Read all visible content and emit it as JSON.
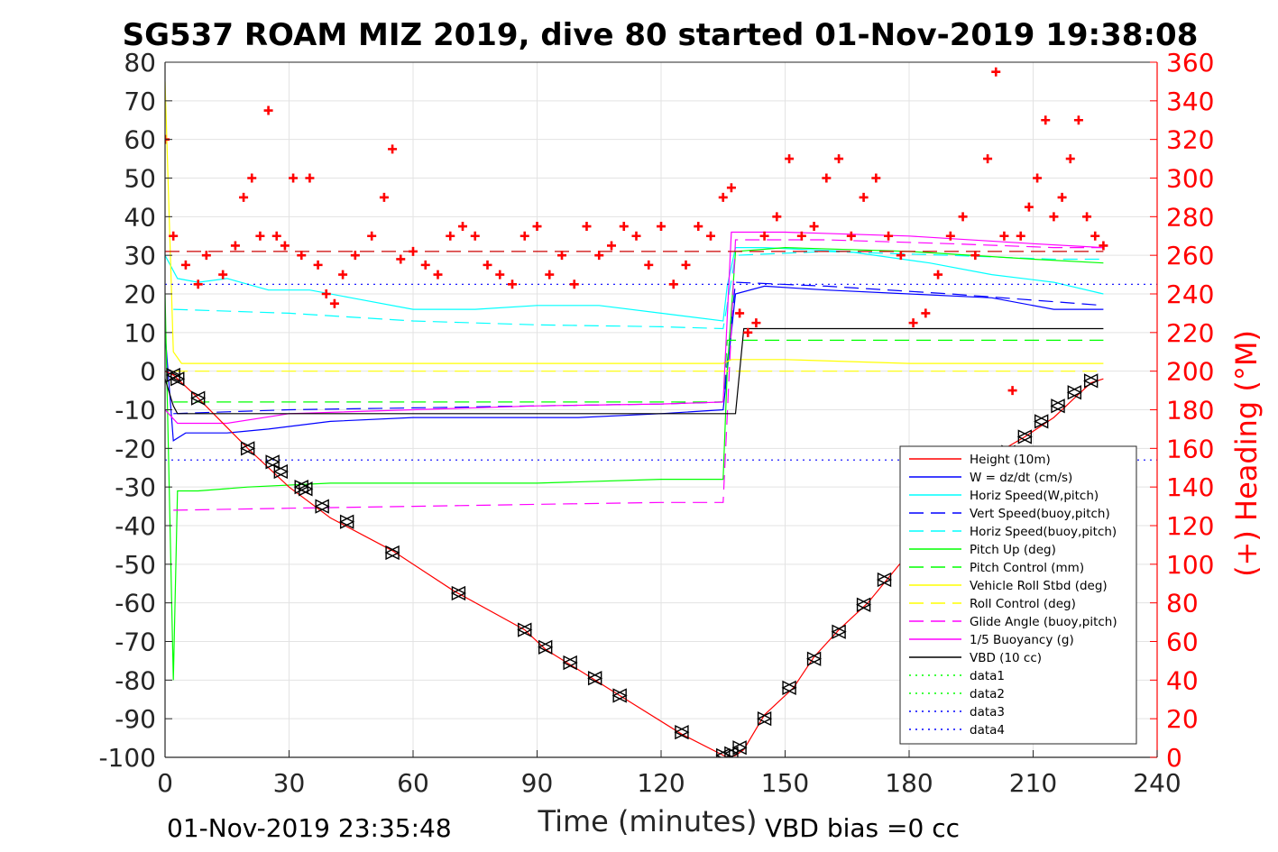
{
  "title": "SG537 ROAM MIZ 2019, dive 80 started 01-Nov-2019 19:38:08",
  "footer_left": "01-Nov-2019 23:35:48",
  "footer_right": "VBD bias =0 cc",
  "chart_data": {
    "type": "line",
    "xlabel": "Time (minutes)",
    "ylabel": "",
    "y2label": "(+) Heading (°M)",
    "xlim": [
      0,
      240
    ],
    "ylim": [
      -100,
      80
    ],
    "y2lim": [
      0,
      360
    ],
    "xticks": [
      0,
      30,
      60,
      90,
      120,
      150,
      180,
      210,
      240
    ],
    "yticks": [
      -100,
      -90,
      -80,
      -70,
      -60,
      -50,
      -40,
      -30,
      -20,
      -10,
      0,
      10,
      20,
      30,
      40,
      50,
      60,
      70,
      80
    ],
    "y2ticks": [
      0,
      20,
      40,
      60,
      80,
      100,
      120,
      140,
      160,
      180,
      200,
      220,
      240,
      260,
      280,
      300,
      320,
      340,
      360
    ],
    "grid": true,
    "legend_position": "lower-right",
    "colors": {
      "height": "#ff0000",
      "w": "#0000ff",
      "horiz_speed_w": "#00ffff",
      "vert_speed_buoy": "#0000ff",
      "horiz_speed_buoy": "#00ffff",
      "pitch_up": "#00ff00",
      "pitch_control": "#00ff00",
      "roll": "#ffff00",
      "roll_control": "#ffff00",
      "glide_angle": "#ff00ff",
      "buoyancy": "#ff00ff",
      "vbd": "#000000",
      "heading": "#ff0000"
    },
    "series": [
      {
        "name": "Height (10m)",
        "style": "solid",
        "color": "#ff0000",
        "x": [
          0,
          2,
          8,
          20,
          30,
          40,
          55,
          70,
          87,
          92,
          98,
          104,
          110,
          125,
          136,
          138,
          140,
          145,
          152,
          157,
          163,
          170,
          180,
          190,
          200,
          208,
          215,
          220,
          224,
          227
        ],
        "y": [
          0,
          -1,
          -7,
          -20,
          -30,
          -38,
          -46.5,
          -57,
          -67,
          -72,
          -76,
          -80,
          -84,
          -94,
          -100,
          -99.5,
          -98,
          -89,
          -82,
          -74,
          -67,
          -60,
          -47,
          -34,
          -22,
          -17,
          -12,
          -7,
          -3,
          -2
        ]
      },
      {
        "name": "W = dz/dt (cm/s)",
        "style": "solid",
        "color": "#0000ff",
        "x": [
          0,
          2,
          5,
          15,
          25,
          40,
          60,
          80,
          100,
          120,
          135,
          136,
          138,
          145,
          160,
          180,
          200,
          215,
          227
        ],
        "y": [
          10,
          -18,
          -16,
          -16,
          -15,
          -13,
          -12,
          -12,
          -12,
          -11,
          -10,
          0,
          20,
          22,
          21,
          20,
          19,
          16,
          16
        ]
      },
      {
        "name": "Horiz Speed(W,pitch)",
        "style": "solid",
        "color": "#00ffff",
        "x": [
          0,
          3,
          8,
          15,
          25,
          35,
          45,
          60,
          75,
          90,
          105,
          120,
          135,
          136,
          138,
          145,
          165,
          185,
          200,
          215,
          227
        ],
        "y": [
          30,
          24,
          23,
          24,
          21,
          21,
          19,
          16,
          16,
          17,
          17,
          15,
          13,
          22,
          32,
          32,
          31,
          28,
          25,
          23,
          20
        ]
      },
      {
        "name": "Vert Speed(buoy,pitch)",
        "style": "dash",
        "color": "#0000ff",
        "x": [
          2,
          30,
          60,
          90,
          120,
          135,
          138,
          160,
          190,
          215,
          227
        ],
        "y": [
          -11,
          -10,
          -9.5,
          -9,
          -8.5,
          -8,
          23,
          22,
          20,
          18,
          17
        ]
      },
      {
        "name": "Horiz Speed(buoy,pitch)",
        "style": "dash",
        "color": "#00ffff",
        "x": [
          2,
          30,
          60,
          90,
          120,
          135,
          138,
          160,
          190,
          215,
          227
        ],
        "y": [
          16,
          15,
          13,
          12,
          11.5,
          11,
          30,
          31,
          30,
          29,
          29
        ]
      },
      {
        "name": "Pitch Up (deg)",
        "style": "solid",
        "color": "#00ff00",
        "x": [
          0,
          2,
          3,
          8,
          20,
          40,
          60,
          90,
          120,
          135,
          136,
          138,
          150,
          180,
          210,
          227
        ],
        "y": [
          20,
          -80,
          -31,
          -31,
          -30,
          -29,
          -29,
          -29,
          -28,
          -28,
          0,
          31,
          32,
          31,
          29,
          28
        ]
      },
      {
        "name": "Pitch Control (mm)",
        "style": "dash",
        "color": "#00ff00",
        "x": [
          2,
          135,
          136,
          227
        ],
        "y": [
          -8,
          -8,
          8,
          8
        ]
      },
      {
        "name": "Vehicle Roll Stbd (deg)",
        "style": "solid",
        "color": "#ffff00",
        "x": [
          0,
          2,
          4,
          10,
          30,
          60,
          90,
          120,
          135,
          137,
          150,
          180,
          210,
          227
        ],
        "y": [
          75,
          5,
          2,
          2,
          2,
          2,
          2,
          2,
          2,
          3,
          3,
          2,
          2,
          2
        ]
      },
      {
        "name": "Roll Control (deg)",
        "style": "dash",
        "color": "#ffff00",
        "x": [
          2,
          227
        ],
        "y": [
          0,
          0
        ]
      },
      {
        "name": "Glide Angle (buoy,pitch)",
        "style": "dash",
        "color": "#ff00ff",
        "x": [
          2,
          30,
          60,
          90,
          120,
          135,
          138,
          160,
          190,
          215,
          227
        ],
        "y": [
          -36,
          -35.5,
          -35,
          -34.5,
          -34,
          -34,
          34,
          34,
          33,
          32,
          32
        ]
      },
      {
        "name": "1/5 Buoyancy (g)",
        "style": "solid",
        "color": "#ff00ff",
        "x": [
          0,
          3,
          15,
          30,
          60,
          90,
          120,
          135,
          137,
          150,
          180,
          210,
          227
        ],
        "y": [
          -10,
          -13.5,
          -13.5,
          -11,
          -10,
          -9,
          -8.5,
          -8,
          36,
          36,
          35,
          33,
          32
        ]
      },
      {
        "name": "VBD (10 cc)",
        "style": "solid",
        "color": "#000000",
        "x": [
          0,
          2,
          3,
          135,
          138,
          140,
          210,
          227
        ],
        "y": [
          -2,
          -9,
          -11,
          -11,
          -11,
          11,
          11,
          11
        ]
      },
      {
        "name": "data1",
        "style": "dot",
        "color": "#00ff00",
        "x": [],
        "y": []
      },
      {
        "name": "data2",
        "style": "dot",
        "color": "#00ff00",
        "x": [],
        "y": []
      },
      {
        "name": "data3",
        "style": "dot",
        "color": "#0000ff",
        "x": [
          0,
          240
        ],
        "y": [
          22.5,
          22.5
        ]
      },
      {
        "name": "data4",
        "style": "dot",
        "color": "#0000ff",
        "x": [
          0,
          240
        ],
        "y": [
          -23,
          -23
        ]
      }
    ],
    "heading_series": {
      "axis": "right",
      "marker": "+",
      "color": "#ff0000",
      "x": [
        0,
        2,
        5,
        8,
        10,
        14,
        17,
        19,
        21,
        23,
        25,
        27,
        29,
        31,
        33,
        35,
        37,
        39,
        41,
        43,
        46,
        50,
        53,
        55,
        57,
        60,
        63,
        66,
        69,
        72,
        75,
        78,
        81,
        84,
        87,
        90,
        93,
        96,
        99,
        102,
        105,
        108,
        111,
        114,
        117,
        120,
        123,
        126,
        129,
        132,
        135,
        137,
        139,
        141,
        143,
        145,
        148,
        151,
        154,
        157,
        160,
        163,
        166,
        169,
        172,
        175,
        178,
        181,
        184,
        187,
        190,
        193,
        196,
        199,
        201,
        203,
        205,
        207,
        209,
        211,
        213,
        215,
        217,
        219,
        221,
        223,
        225,
        227
      ],
      "y": [
        320,
        270,
        255,
        245,
        260,
        250,
        265,
        290,
        300,
        270,
        335,
        270,
        265,
        300,
        260,
        300,
        255,
        240,
        235,
        250,
        260,
        270,
        290,
        315,
        258,
        262,
        255,
        250,
        270,
        275,
        270,
        255,
        250,
        245,
        270,
        275,
        250,
        260,
        245,
        275,
        260,
        265,
        275,
        270,
        255,
        275,
        245,
        255,
        275,
        270,
        290,
        295,
        230,
        220,
        225,
        270,
        280,
        310,
        270,
        275,
        300,
        310,
        270,
        290,
        300,
        270,
        260,
        225,
        230,
        250,
        270,
        280,
        260,
        310,
        355,
        270,
        190,
        270,
        285,
        300,
        330,
        280,
        290,
        310,
        330,
        280,
        270,
        265
      ]
    },
    "heading_dashed_level": 262,
    "depth_markers": {
      "x": [
        2,
        3,
        8,
        20,
        26,
        28,
        33,
        34,
        38,
        44,
        55,
        71,
        87,
        92,
        98,
        104,
        110,
        125,
        135,
        137,
        139,
        145,
        151,
        157,
        163,
        169,
        174,
        180,
        186,
        192,
        198,
        204,
        208,
        212,
        216,
        220,
        224
      ],
      "y": [
        -1,
        -2,
        -7,
        -20,
        -23.5,
        -26,
        -30,
        -30.5,
        -35,
        -39,
        -47,
        -57.5,
        -67,
        -71.5,
        -75.5,
        -79.5,
        -84,
        -93.5,
        -99.5,
        -99,
        -97.5,
        -90,
        -82,
        -74.5,
        -67.5,
        -60.5,
        -54,
        -47,
        -40,
        -33,
        -25.5,
        -21,
        -17,
        -13,
        -9,
        -5.5,
        -2.5
      ]
    },
    "legend": [
      {
        "label": "Height (10m)",
        "color": "#ff0000",
        "style": "solid"
      },
      {
        "label": "W = dz/dt (cm/s)",
        "color": "#0000ff",
        "style": "solid"
      },
      {
        "label": "Horiz Speed(W,pitch)",
        "color": "#00ffff",
        "style": "solid"
      },
      {
        "label": "Vert Speed(buoy,pitch)",
        "color": "#0000ff",
        "style": "dash"
      },
      {
        "label": "Horiz Speed(buoy,pitch)",
        "color": "#00ffff",
        "style": "dash"
      },
      {
        "label": "Pitch Up (deg)",
        "color": "#00ff00",
        "style": "solid"
      },
      {
        "label": "Pitch Control (mm)",
        "color": "#00ff00",
        "style": "dash"
      },
      {
        "label": "Vehicle Roll Stbd (deg)",
        "color": "#ffff00",
        "style": "solid"
      },
      {
        "label": "Roll Control (deg)",
        "color": "#ffff00",
        "style": "dash"
      },
      {
        "label": "Glide Angle (buoy,pitch)",
        "color": "#ff00ff",
        "style": "dash"
      },
      {
        "label": "1/5 Buoyancy (g)",
        "color": "#ff00ff",
        "style": "solid"
      },
      {
        "label": "VBD (10 cc)",
        "color": "#000000",
        "style": "solid"
      },
      {
        "label": "data1",
        "color": "#00ff00",
        "style": "dot"
      },
      {
        "label": "data2",
        "color": "#00ff00",
        "style": "dot"
      },
      {
        "label": "data3",
        "color": "#0000ff",
        "style": "dot"
      },
      {
        "label": "data4",
        "color": "#0000ff",
        "style": "dot"
      }
    ]
  }
}
